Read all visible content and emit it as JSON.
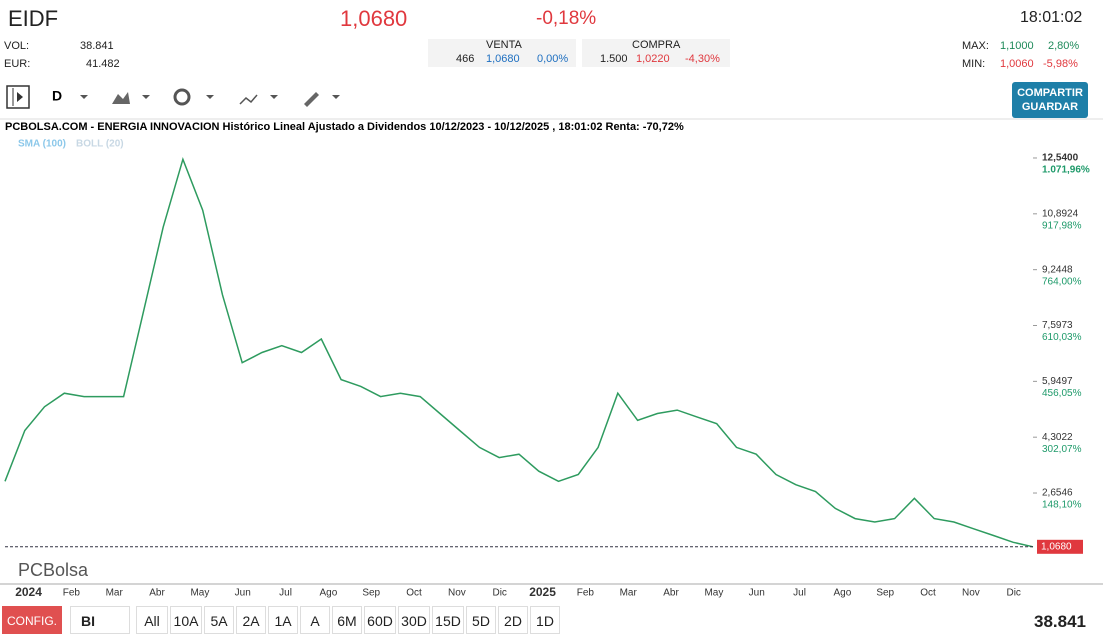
{
  "header": {
    "symbol": "EIDF",
    "price": "1,0680",
    "change": "-0,18%",
    "time": "18:01:02"
  },
  "stats": {
    "vol_label": "VOL:",
    "vol": "38.841",
    "eur_label": "EUR:",
    "eur": "41.482",
    "venta": {
      "label": "VENTA",
      "qty": "466",
      "price": "1,0680",
      "pct": "0,00%"
    },
    "compra": {
      "label": "COMPRA",
      "qty": "1.500",
      "price": "1,0220",
      "pct": "-4,30%"
    },
    "max": {
      "label": "MAX:",
      "price": "1,1000",
      "pct": "2,80%"
    },
    "min": {
      "label": "MIN:",
      "price": "1,0060",
      "pct": "-5,98%"
    }
  },
  "toolbar": {
    "period": "D",
    "share": "COMPARTIR",
    "save": "GUARDAR"
  },
  "chart": {
    "title": "PCBOLSA.COM - ENERGIA INNOVACION Histórico Lineal Ajustado a Dividendos 10/12/2023 - 10/12/2025 , 18:01:02 Renta: -70,72%",
    "legend": [
      "SMA (100)",
      "BOLL (20)"
    ],
    "ylim": [
      0,
      13.1
    ],
    "yticks": [
      {
        "value": 12.54,
        "label": "12,5400",
        "pct": "1.071,96%"
      },
      {
        "value": 10.8924,
        "label": "10,8924",
        "pct": "917,98%"
      },
      {
        "value": 9.2448,
        "label": "9,2448",
        "pct": "764,00%"
      },
      {
        "value": 7.5973,
        "label": "7,5973",
        "pct": "610,03%"
      },
      {
        "value": 5.9497,
        "label": "5,9497",
        "pct": "456,05%"
      },
      {
        "value": 4.3022,
        "label": "4,3022",
        "pct": "302,07%"
      },
      {
        "value": 2.6546,
        "label": "2,6546",
        "pct": "148,10%"
      }
    ],
    "last": {
      "value": 1.068,
      "label": "1,0680"
    },
    "months": [
      "2024",
      "Feb",
      "Mar",
      "Abr",
      "May",
      "Jun",
      "Jul",
      "Ago",
      "Sep",
      "Oct",
      "Nov",
      "Dic",
      "2025",
      "Feb",
      "Mar",
      "Abr",
      "May",
      "Jun",
      "Jul",
      "Ago",
      "Sep",
      "Oct",
      "Nov",
      "Dic"
    ],
    "prices": [
      3.0,
      4.5,
      5.2,
      5.6,
      5.5,
      5.5,
      5.5,
      8.0,
      10.5,
      12.5,
      11.0,
      8.5,
      6.5,
      6.8,
      7.0,
      6.8,
      7.2,
      6.0,
      5.8,
      5.5,
      5.6,
      5.5,
      5.0,
      4.5,
      4.0,
      3.7,
      3.8,
      3.3,
      3.0,
      3.2,
      4.0,
      5.6,
      4.8,
      5.0,
      5.1,
      4.9,
      4.7,
      4.0,
      3.8,
      3.2,
      2.9,
      2.7,
      2.2,
      1.9,
      1.8,
      1.9,
      2.5,
      1.9,
      1.8,
      1.6,
      1.4,
      1.2,
      1.068
    ]
  },
  "bottom": {
    "config": "CONFIG.",
    "mode": "BI",
    "ranges": [
      "All",
      "10A",
      "5A",
      "2A",
      "1A",
      "A",
      "6M",
      "60D",
      "30D",
      "15D",
      "5D",
      "2D",
      "1D"
    ],
    "volume": "38.841"
  }
}
